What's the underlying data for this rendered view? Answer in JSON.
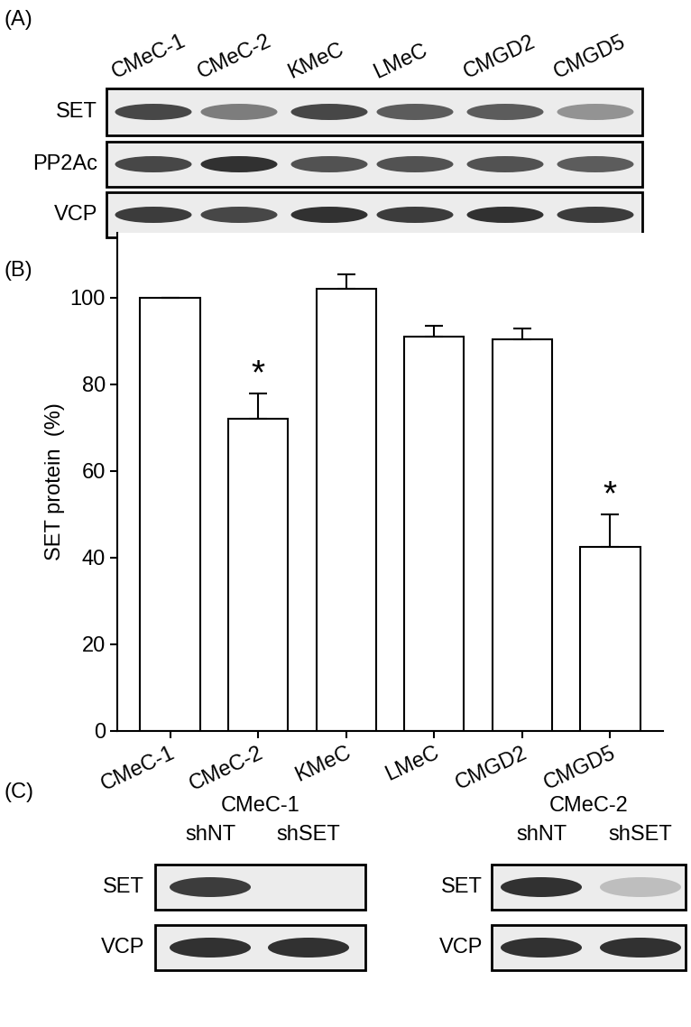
{
  "panel_labels": [
    "(A)",
    "(B)",
    "(C)"
  ],
  "blot_A": {
    "lanes": [
      "CMeC-1",
      "CMeC-2",
      "KMeC",
      "LMeC",
      "CMGD2",
      "CMGD5"
    ],
    "rows": [
      {
        "name": "SET",
        "intensities": [
          0.85,
          0.6,
          0.85,
          0.75,
          0.75,
          0.5
        ]
      },
      {
        "name": "PP2Ac",
        "intensities": [
          0.85,
          0.95,
          0.8,
          0.8,
          0.8,
          0.75
        ]
      },
      {
        "name": "VCP",
        "intensities": [
          0.9,
          0.85,
          0.95,
          0.9,
          0.95,
          0.9
        ]
      }
    ]
  },
  "chart_data": {
    "type": "bar",
    "categories": [
      "CMeC-1",
      "CMeC-2",
      "KMeC",
      "LMeC",
      "CMGD2",
      "CMGD5"
    ],
    "values": [
      100,
      72,
      102,
      91,
      90.5,
      42.5
    ],
    "errors": [
      0,
      6,
      3.5,
      2.5,
      2.5,
      7.5
    ],
    "significance": [
      null,
      "*",
      null,
      null,
      null,
      "*"
    ],
    "y_label": "SET protein  (%)",
    "ylim": [
      0,
      115
    ],
    "yticks": [
      0,
      20,
      40,
      60,
      80,
      100
    ],
    "color": "#ffffff",
    "grid": false
  },
  "blot_C": [
    {
      "cell": "CMeC-1",
      "lanes": [
        "shNT",
        "shSET"
      ],
      "rows": [
        {
          "name": "SET",
          "intensities": [
            0.9,
            0
          ]
        },
        {
          "name": "VCP",
          "intensities": [
            0.95,
            0.95
          ]
        }
      ]
    },
    {
      "cell": "CMeC-2",
      "lanes": [
        "shNT",
        "shSET"
      ],
      "rows": [
        {
          "name": "SET",
          "intensities": [
            0.95,
            0.3
          ]
        },
        {
          "name": "VCP",
          "intensities": [
            0.95,
            0.95
          ]
        }
      ]
    }
  ]
}
